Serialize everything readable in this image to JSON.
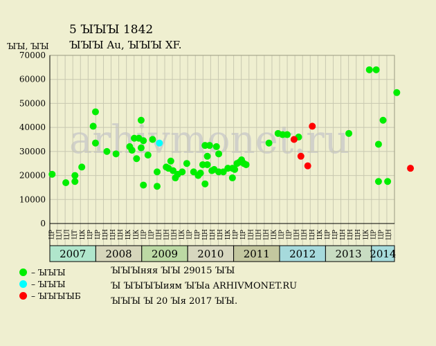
{
  "header": {
    "title_line1": "5 ꙐꙐꙐ 1842",
    "title_line2": "ꙐꙐꙐ Au, ꙐꙐꙐ XF."
  },
  "chart_data": {
    "type": "scatter",
    "ylabel": "ꙐꙐ, ꙐꙐ",
    "ylim": [
      0,
      70000
    ],
    "yticks": [
      0,
      10000,
      20000,
      30000,
      40000,
      50000,
      60000,
      70000
    ],
    "watermark": "arhivmonet.ru",
    "months": [
      "ЦР",
      "ЦЛ",
      "ЦЛ",
      "ЦТ",
      "ЦК",
      "ЦР",
      "ЦР",
      "ЦН",
      "ЦН",
      "ЦН",
      "ЦК",
      "ЦК",
      "ЦР",
      "ЦР",
      "ЦН",
      "ЦН",
      "ЦН",
      "ЦК",
      "ЦР",
      "ЦР",
      "ЦН",
      "ЦН",
      "ЦН",
      "ЦК",
      "ЦР",
      "ЦР",
      "ЦН",
      "ЦН",
      "ЦН",
      "ЦК",
      "ЦР",
      "ЦР",
      "ЦН",
      "ЦН",
      "ЦН",
      "ЦК",
      "ЦР",
      "ЦР",
      "ЦН",
      "ЦН",
      "ЦН",
      "ЦК",
      "ЦР",
      "ЦР",
      "ЦН"
    ],
    "years": [
      {
        "label": "2007",
        "color": "#b0e6cc"
      },
      {
        "label": "2008",
        "color": "#d6d6bb"
      },
      {
        "label": "2009",
        "color": "#bcd9a4"
      },
      {
        "label": "2010",
        "color": "#d7d7bf"
      },
      {
        "label": "2011",
        "color": "#c3c79f"
      },
      {
        "label": "2012",
        "color": "#a6dadc"
      },
      {
        "label": "2013",
        "color": "#c8dcc2"
      },
      {
        "label": "2014",
        "color": "#a7dcdc"
      }
    ],
    "x_start": 2007.0,
    "x_end": 2014.55,
    "series": [
      {
        "color": "#00ee00",
        "points": [
          [
            2007.05,
            20500
          ],
          [
            2007.35,
            17000
          ],
          [
            2007.55,
            20000
          ],
          [
            2007.55,
            17500
          ],
          [
            2007.7,
            23500
          ],
          [
            2007.95,
            40500
          ],
          [
            2008.0,
            46500
          ],
          [
            2008.0,
            33500
          ],
          [
            2008.25,
            30000
          ],
          [
            2008.45,
            29000
          ],
          [
            2008.75,
            32000
          ],
          [
            2008.8,
            30500
          ],
          [
            2008.85,
            35500
          ],
          [
            2008.9,
            27000
          ],
          [
            2008.95,
            35500
          ],
          [
            2009.0,
            31500
          ],
          [
            2009.0,
            43000
          ],
          [
            2009.05,
            34500
          ],
          [
            2009.05,
            16000
          ],
          [
            2009.15,
            28500
          ],
          [
            2009.25,
            35000
          ],
          [
            2009.35,
            21500
          ],
          [
            2009.35,
            15500
          ],
          [
            2009.55,
            23500
          ],
          [
            2009.6,
            23000
          ],
          [
            2009.65,
            26000
          ],
          [
            2009.7,
            22000
          ],
          [
            2009.75,
            19000
          ],
          [
            2009.8,
            20500
          ],
          [
            2009.9,
            21500
          ],
          [
            2010.0,
            25000
          ],
          [
            2010.15,
            21500
          ],
          [
            2010.25,
            20000
          ],
          [
            2010.3,
            21000
          ],
          [
            2010.35,
            24500
          ],
          [
            2010.4,
            32500
          ],
          [
            2010.4,
            16500
          ],
          [
            2010.45,
            28000
          ],
          [
            2010.45,
            24500
          ],
          [
            2010.5,
            32500
          ],
          [
            2010.55,
            22000
          ],
          [
            2010.6,
            22500
          ],
          [
            2010.65,
            32000
          ],
          [
            2010.7,
            21500
          ],
          [
            2010.7,
            29000
          ],
          [
            2010.8,
            21500
          ],
          [
            2010.9,
            23000
          ],
          [
            2011.0,
            23000
          ],
          [
            2011.0,
            19000
          ],
          [
            2011.05,
            22500
          ],
          [
            2011.1,
            25000
          ],
          [
            2011.15,
            25500
          ],
          [
            2011.2,
            26500
          ],
          [
            2011.25,
            25000
          ],
          [
            2011.3,
            24500
          ],
          [
            2011.8,
            33500
          ],
          [
            2012.0,
            37500
          ],
          [
            2012.1,
            37000
          ],
          [
            2012.2,
            37000
          ],
          [
            2012.45,
            36000
          ],
          [
            2013.55,
            37500
          ],
          [
            2014.0,
            64000
          ],
          [
            2014.15,
            64000
          ],
          [
            2014.2,
            33000
          ],
          [
            2014.2,
            17500
          ],
          [
            2014.3,
            43000
          ],
          [
            2014.4,
            17500
          ],
          [
            2014.6,
            54500
          ]
        ]
      },
      {
        "color": "#00ffff",
        "points": [
          [
            2009.4,
            33500
          ]
        ]
      },
      {
        "color": "#ff0000",
        "points": [
          [
            2012.35,
            35000
          ],
          [
            2012.5,
            28000
          ],
          [
            2012.65,
            24000
          ],
          [
            2012.75,
            40500
          ],
          [
            2014.9,
            23000
          ]
        ]
      }
    ],
    "legend": [
      {
        "color": "#00ee00",
        "label": "– ꙐꙐꙐ"
      },
      {
        "color": "#00ffff",
        "label": "– ꙐꙐꙐ"
      },
      {
        "color": "#ff0000",
        "label": "– ꙐꙐꙐꙐБ"
      }
    ]
  },
  "info": {
    "line1": "ꙐꙐꙐняя ꙐꙐ 29015 ꙐꙐ",
    "line2": "Ꙑ ꙐꙐꙐꙐиям ꙐꙐа ARHIVMONET.RU",
    "line3": "ꙐꙐꙐ Ꙑ 20 Ꙑя 2017 ꙐꙐ."
  }
}
